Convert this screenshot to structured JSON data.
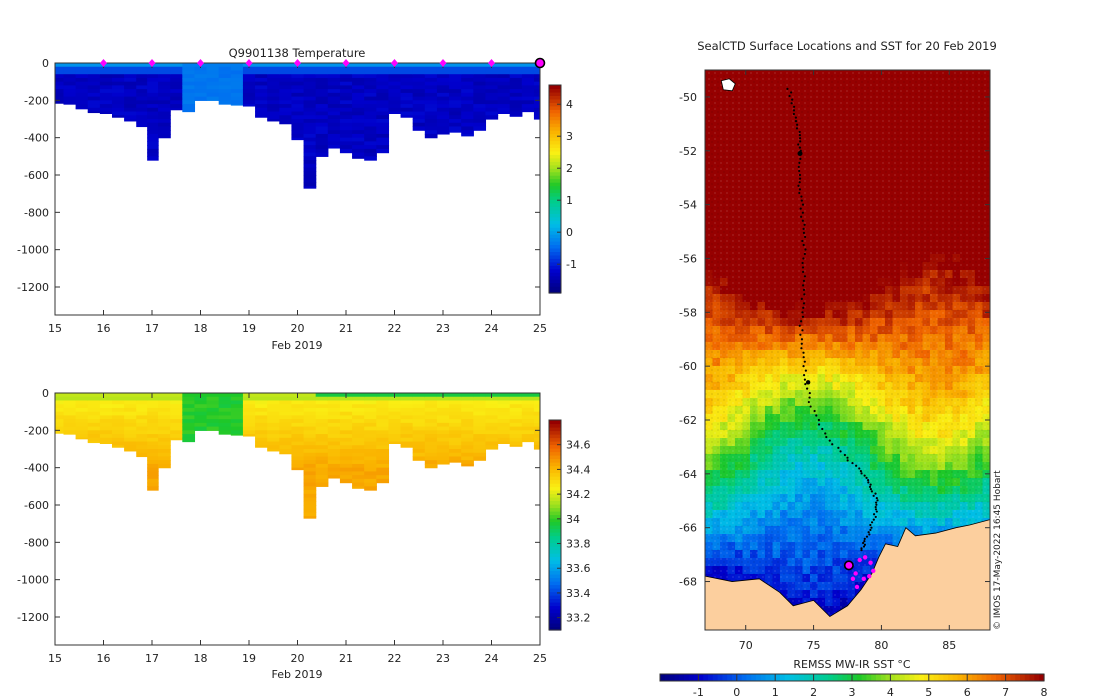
{
  "chart_data": [
    {
      "type": "heatmap",
      "id": "temperature-section",
      "title": "Q9901138  Temperature",
      "xlabel": "Feb 2019",
      "ylabel": "",
      "xlim": [
        15,
        25
      ],
      "ylim": [
        -1350,
        0
      ],
      "xticks": [
        "15",
        "16",
        "17",
        "18",
        "19",
        "20",
        "21",
        "22",
        "23",
        "24",
        "25"
      ],
      "yticks": [
        "0",
        "-200",
        "-400",
        "-600",
        "-800",
        "-1000",
        "-1200"
      ],
      "colorbar": {
        "min": -1.9,
        "max": 4.6,
        "ticks": [
          "-1",
          "0",
          "1",
          "2",
          "3",
          "4"
        ]
      },
      "surface_markers": [
        16,
        17,
        18,
        19,
        20,
        21,
        22,
        23,
        24
      ],
      "end_marker": 25,
      "profile_days": [
        15.05,
        15.3,
        15.55,
        15.8,
        16.05,
        16.3,
        16.55,
        16.8,
        17.0,
        17.25,
        17.5,
        17.75,
        18.0,
        18.25,
        18.5,
        18.75,
        19.0,
        19.25,
        19.5,
        19.75,
        20.0,
        20.25,
        20.5,
        20.75,
        21.0,
        21.25,
        21.5,
        21.75,
        22.0,
        22.25,
        22.5,
        22.75,
        23.0,
        23.25,
        23.5,
        23.75,
        24.0,
        24.25,
        24.5,
        24.75,
        25.0
      ],
      "profile_depths": [
        215,
        220,
        245,
        265,
        270,
        290,
        310,
        340,
        520,
        400,
        250,
        260,
        200,
        200,
        220,
        225,
        230,
        290,
        310,
        325,
        410,
        670,
        500,
        455,
        480,
        510,
        520,
        480,
        270,
        290,
        360,
        400,
        380,
        370,
        390,
        360,
        300,
        270,
        285,
        260,
        300
      ]
    },
    {
      "type": "heatmap",
      "id": "salinity-section",
      "title": "",
      "xlabel": "Feb 2019",
      "ylabel": "",
      "xlim": [
        15,
        25
      ],
      "ylim": [
        -1350,
        0
      ],
      "xticks": [
        "15",
        "16",
        "17",
        "18",
        "19",
        "20",
        "21",
        "22",
        "23",
        "24",
        "25"
      ],
      "yticks": [
        "0",
        "-200",
        "-400",
        "-600",
        "-800",
        "-1000",
        "-1200"
      ],
      "colorbar": {
        "min": 33.1,
        "max": 34.8,
        "ticks": [
          "33.2",
          "33.4",
          "33.6",
          "33.8",
          "34",
          "34.2",
          "34.4",
          "34.6"
        ]
      }
    },
    {
      "type": "heatmap",
      "id": "sst-map",
      "title": "SealCTD Surface Locations and SST for 20 Feb 2019",
      "xlabel": "",
      "ylabel": "",
      "xlim": [
        67,
        88
      ],
      "ylim": [
        -69.8,
        -49
      ],
      "xticks": [
        "70",
        "75",
        "80",
        "85"
      ],
      "yticks": [
        "-50",
        "-52",
        "-54",
        "-56",
        "-58",
        "-60",
        "-62",
        "-64",
        "-66",
        "-68"
      ],
      "colorbar": {
        "label": "REMSS MW-IR SST °C",
        "min": -2,
        "max": 8,
        "ticks": [
          "-1",
          "0",
          "1",
          "2",
          "3",
          "4",
          "5",
          "6",
          "7",
          "8"
        ]
      },
      "track": [
        [
          73.2,
          -49.7
        ],
        [
          73.6,
          -50.5
        ],
        [
          73.9,
          -51.3
        ],
        [
          74.0,
          -52.0
        ],
        [
          73.9,
          -52.9
        ],
        [
          74.1,
          -53.7
        ],
        [
          74.2,
          -54.6
        ],
        [
          74.3,
          -55.5
        ],
        [
          74.3,
          -56.5
        ],
        [
          74.2,
          -57.5
        ],
        [
          74.1,
          -58.5
        ],
        [
          74.2,
          -59.5
        ],
        [
          74.4,
          -60.5
        ],
        [
          74.8,
          -61.5
        ],
        [
          75.8,
          -62.5
        ],
        [
          77.2,
          -63.3
        ],
        [
          78.5,
          -63.9
        ],
        [
          79.2,
          -64.4
        ],
        [
          79.6,
          -64.9
        ],
        [
          79.6,
          -65.4
        ],
        [
          79.2,
          -66.0
        ],
        [
          78.8,
          -66.5
        ],
        [
          78.5,
          -66.9
        ]
      ],
      "surface_points": [
        [
          78.4,
          -67.2
        ],
        [
          78.8,
          -67.1
        ],
        [
          79.2,
          -67.3
        ],
        [
          79.4,
          -67.6
        ],
        [
          79.1,
          -67.8
        ],
        [
          78.7,
          -67.9
        ],
        [
          78.1,
          -67.7
        ],
        [
          77.9,
          -67.9
        ],
        [
          78.2,
          -68.2
        ]
      ],
      "current_location": [
        77.6,
        -67.4
      ],
      "credit": "© IMOS 17-May-2022 16:45 Hobart"
    }
  ]
}
